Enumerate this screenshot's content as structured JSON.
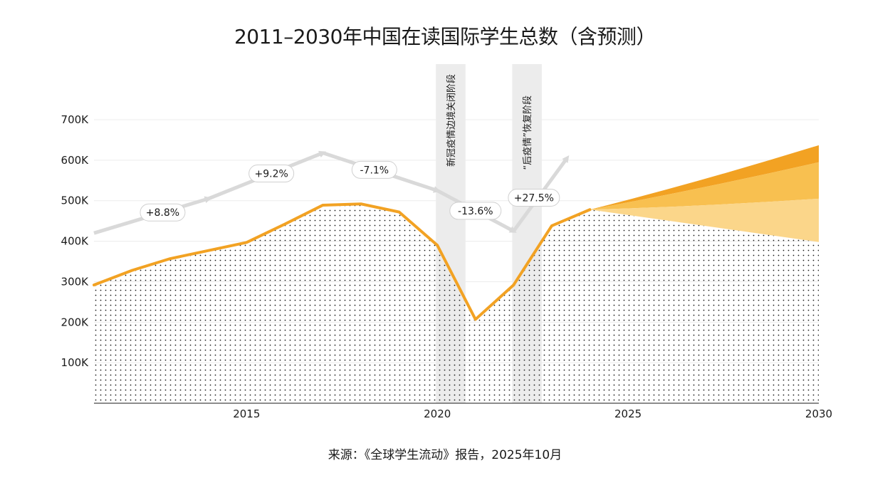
{
  "title": "2011–2030年中国在读国际学生总数（含预测）",
  "source": "来源：《全球学生流动》报告，2025年10月",
  "colors": {
    "line": "#f2a223",
    "forecast_high": "#f2a223",
    "forecast_mid": "#f8c050",
    "forecast_low": "#fbd68a",
    "band": "#ececec",
    "arrow": "#d9d9d9",
    "dots": "#1a1a1a"
  },
  "chart_data": {
    "type": "area",
    "title": "2011–2030年中国在读国际学生总数（含预测）",
    "xlabel": "",
    "ylabel": "",
    "xlim": [
      2011,
      2030
    ],
    "ylim": [
      0,
      700000
    ],
    "x_ticks": [
      2015,
      2020,
      2025,
      2030
    ],
    "x_tick_labels": [
      "2015",
      "2020",
      "2025",
      "2030"
    ],
    "y_ticks": [
      100000,
      200000,
      300000,
      400000,
      500000,
      600000,
      700000
    ],
    "y_tick_labels": [
      "100K",
      "200K",
      "300K",
      "400K",
      "500K",
      "600K",
      "700K"
    ],
    "grid": "horizontal",
    "series": [
      {
        "x": [
          2011,
          2012,
          2013,
          2014,
          2015,
          2016,
          2017,
          2018,
          2019,
          2020,
          2021,
          2022,
          2023,
          2024
        ],
        "values": [
          292000,
          328000,
          357000,
          377000,
          397000,
          442000,
          489000,
          492000,
          472000,
          390000,
          207000,
          292000,
          438000,
          478000
        ]
      }
    ],
    "forecast": {
      "x": [
        2024,
        2030
      ],
      "lower": [
        478000,
        398000
      ],
      "band1_top": [
        478000,
        505000
      ],
      "band2_top": [
        478000,
        595000
      ],
      "band3_top": [
        478000,
        637000
      ]
    },
    "bands": [
      {
        "from": 2020,
        "to": 2021,
        "label": "新冠疫情边境关闭阶段"
      },
      {
        "from": 2022,
        "to": 2023,
        "label": "“后疫情”恢复阶段"
      }
    ],
    "trend_arrows": [
      {
        "from": [
          2011,
          420000
        ],
        "to": [
          2014,
          505000
        ],
        "label": "+8.8%"
      },
      {
        "from": [
          2014,
          505000
        ],
        "to": [
          2017,
          618000
        ],
        "label": "+9.2%"
      },
      {
        "from": [
          2017,
          618000
        ],
        "to": [
          2020,
          525000
        ],
        "label": "-7.1%"
      },
      {
        "from": [
          2020,
          525000
        ],
        "to": [
          2022,
          425000
        ],
        "label": "-13.6%"
      },
      {
        "from": [
          2022,
          425000
        ],
        "to": [
          2023.4,
          605000
        ],
        "label": "+27.5%"
      }
    ],
    "annotations": [
      "+8.8%",
      "+9.2%",
      "-7.1%",
      "-13.6%",
      "+27.5%"
    ]
  }
}
